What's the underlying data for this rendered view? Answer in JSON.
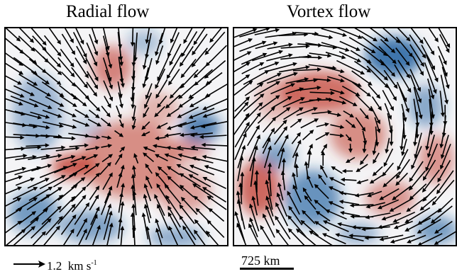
{
  "panels": [
    {
      "id": "left",
      "title": "Radial flow",
      "flow": "radial"
    },
    {
      "id": "right",
      "title": "Vortex flow",
      "flow": "vortex"
    }
  ],
  "legend": {
    "arrow_value": "1.2",
    "arrow_units": "km s",
    "arrow_units_exponent": "-1",
    "scale_bar_label": "725 km"
  },
  "colors": {
    "positive": "#c0392b",
    "negative": "#1f5f9f",
    "neutral": "#f4f4f6",
    "arrow": "#000000"
  }
}
